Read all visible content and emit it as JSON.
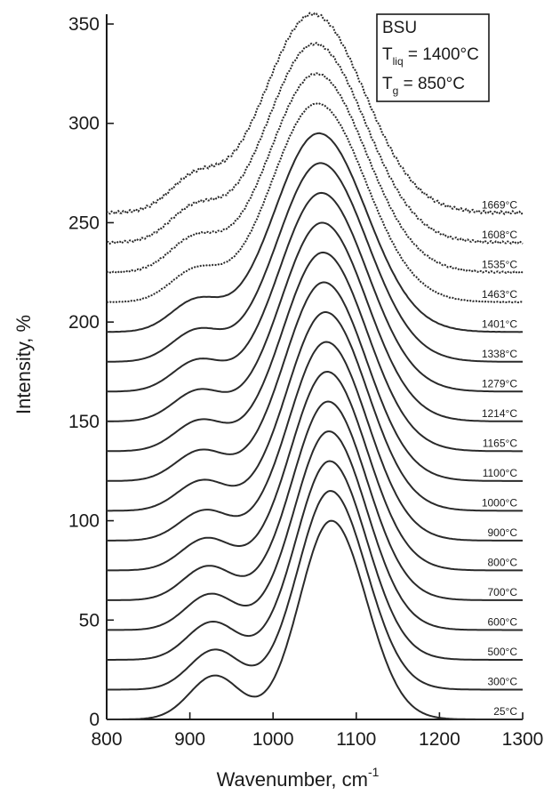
{
  "chart_data": {
    "type": "line",
    "title": "",
    "xlabel": "Wavenumber, cm",
    "xlabel_sup": "-1",
    "ylabel": "Intensity, %",
    "xlim": [
      800,
      1300
    ],
    "ylim": [
      0,
      355
    ],
    "xticks": [
      "800",
      "900",
      "1000",
      "1100",
      "1200",
      "1300"
    ],
    "yticks": [
      "0",
      "50",
      "100",
      "150",
      "200",
      "250",
      "300",
      "350"
    ],
    "grid": false,
    "legend": {
      "placement": "top-right",
      "line1": "BSU",
      "line2_main": "T",
      "line2_sub": "liq",
      "line2_rest": " = 1400°C",
      "line3_main": "T",
      "line3_sub": "g",
      "line3_rest": " = 850°C"
    },
    "series": [
      {
        "name": "25°C",
        "baseline": 0,
        "shoulder_center": 930,
        "shoulder_height": 22,
        "peak_center": 1070,
        "peak_height": 100
      },
      {
        "name": "300°C",
        "baseline": 15,
        "shoulder_center": 930,
        "shoulder_height": 20,
        "peak_center": 1069,
        "peak_height": 100
      },
      {
        "name": "500°C",
        "baseline": 30,
        "shoulder_center": 927,
        "shoulder_height": 19,
        "peak_center": 1068,
        "peak_height": 100
      },
      {
        "name": "600°C",
        "baseline": 45,
        "shoulder_center": 925,
        "shoulder_height": 18,
        "peak_center": 1067,
        "peak_height": 100
      },
      {
        "name": "700°C",
        "baseline": 60,
        "shoulder_center": 922,
        "shoulder_height": 17,
        "peak_center": 1066,
        "peak_height": 100
      },
      {
        "name": "800°C",
        "baseline": 75,
        "shoulder_center": 920,
        "shoulder_height": 16,
        "peak_center": 1065,
        "peak_height": 100
      },
      {
        "name": "900°C",
        "baseline": 90,
        "shoulder_center": 918,
        "shoulder_height": 15,
        "peak_center": 1064,
        "peak_height": 100
      },
      {
        "name": "1000°C",
        "baseline": 105,
        "shoulder_center": 915,
        "shoulder_height": 15,
        "peak_center": 1063,
        "peak_height": 100
      },
      {
        "name": "1100°C",
        "baseline": 120,
        "shoulder_center": 913,
        "shoulder_height": 15,
        "peak_center": 1061,
        "peak_height": 100
      },
      {
        "name": "1165°C",
        "baseline": 135,
        "shoulder_center": 912,
        "shoulder_height": 15,
        "peak_center": 1060,
        "peak_height": 100
      },
      {
        "name": "1214°C",
        "baseline": 150,
        "shoulder_center": 910,
        "shoulder_height": 15,
        "peak_center": 1059,
        "peak_height": 100
      },
      {
        "name": "1279°C",
        "baseline": 165,
        "shoulder_center": 909,
        "shoulder_height": 15,
        "peak_center": 1058,
        "peak_height": 100
      },
      {
        "name": "1338°C",
        "baseline": 180,
        "shoulder_center": 908,
        "shoulder_height": 15,
        "peak_center": 1057,
        "peak_height": 100
      },
      {
        "name": "1401°C",
        "baseline": 195,
        "shoulder_center": 907,
        "shoulder_height": 15,
        "peak_center": 1055,
        "peak_height": 100
      },
      {
        "name": "1463°C",
        "baseline": 210,
        "shoulder_center": 906,
        "shoulder_height": 15,
        "peak_center": 1053,
        "peak_height": 100
      },
      {
        "name": "1535°C",
        "baseline": 225,
        "shoulder_center": 905,
        "shoulder_height": 16,
        "peak_center": 1052,
        "peak_height": 100
      },
      {
        "name": "1608°C",
        "baseline": 240,
        "shoulder_center": 905,
        "shoulder_height": 16,
        "peak_center": 1050,
        "peak_height": 100
      },
      {
        "name": "1669°C",
        "baseline": 255,
        "shoulder_center": 905,
        "shoulder_height": 16,
        "peak_center": 1048,
        "peak_height": 100
      }
    ]
  }
}
